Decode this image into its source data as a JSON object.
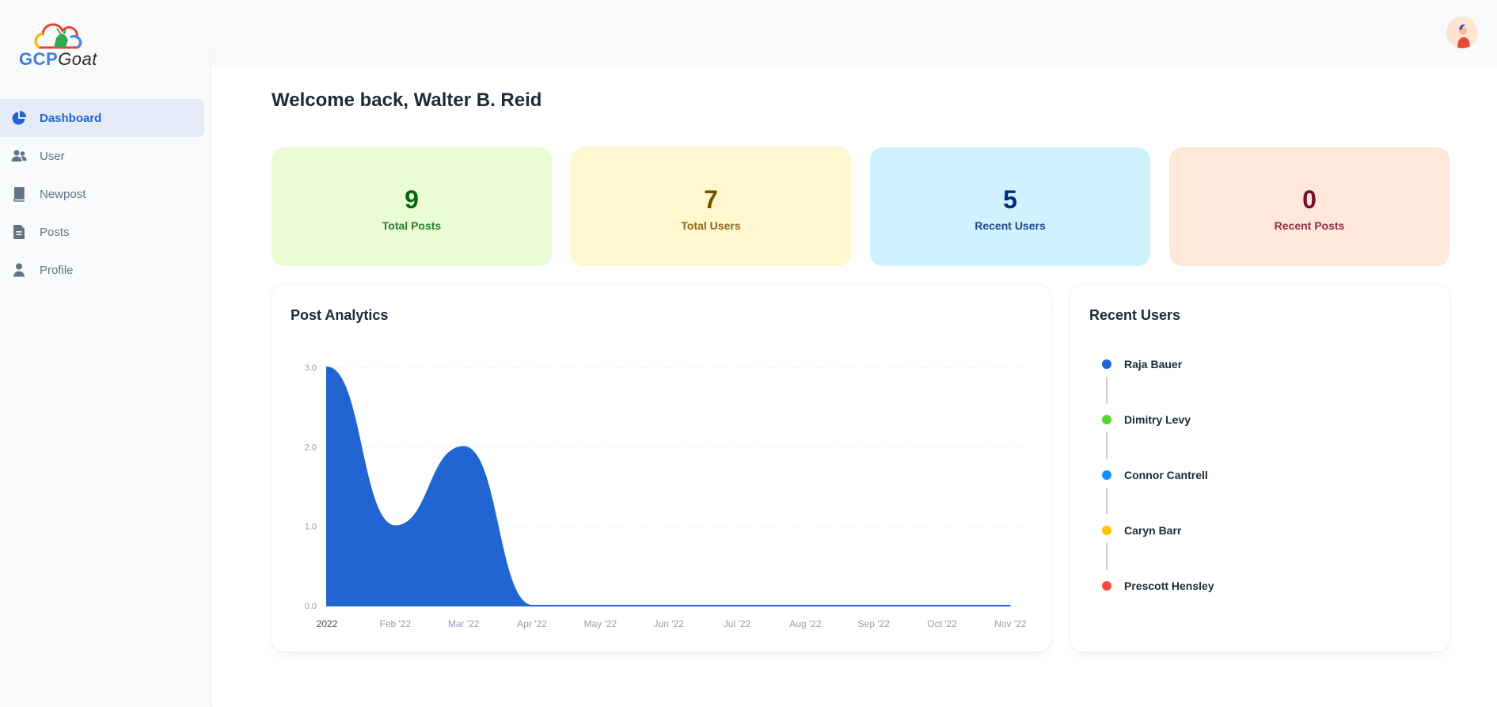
{
  "logo": {
    "part1": "GCP",
    "part2": "Goat"
  },
  "nav": [
    {
      "label": "Dashboard",
      "icon": "pie-chart-icon",
      "active": true
    },
    {
      "label": "User",
      "icon": "people-icon",
      "active": false
    },
    {
      "label": "Newpost",
      "icon": "book-icon",
      "active": false
    },
    {
      "label": "Posts",
      "icon": "file-text-icon",
      "active": false
    },
    {
      "label": "Profile",
      "icon": "person-icon",
      "active": false
    }
  ],
  "welcome": "Welcome back, Walter B. Reid",
  "stats": [
    {
      "value": "9",
      "label": "Total Posts",
      "bg": "#e9fcd4",
      "fg": "#08660d"
    },
    {
      "value": "7",
      "label": "Total Users",
      "bg": "#fff7cd",
      "fg": "#7a4f01"
    },
    {
      "value": "5",
      "label": "Recent Users",
      "bg": "#d0f2ff",
      "fg": "#04297a"
    },
    {
      "value": "0",
      "label": "Recent Posts",
      "bg": "#ffe7d9",
      "fg": "#7a0c2e"
    }
  ],
  "analytics": {
    "title": "Post Analytics"
  },
  "chart_data": {
    "type": "area",
    "x": [
      "2022",
      "Feb '22",
      "Mar '22",
      "Apr '22",
      "May '22",
      "Jun '22",
      "Jul '22",
      "Aug '22",
      "Sep '22",
      "Oct '22",
      "Nov '22"
    ],
    "series": [
      {
        "values": [
          3,
          1,
          2,
          0,
          0,
          0,
          0,
          0,
          0,
          0,
          0
        ]
      },
      {
        "values": [
          0,
          1,
          0,
          0,
          0,
          0,
          0,
          0,
          0,
          0,
          0
        ]
      }
    ],
    "yticks": [
      "0.0",
      "1.0",
      "2.0",
      "3.0"
    ],
    "ylim": [
      0,
      3
    ],
    "color": "#2065d1",
    "grid": true
  },
  "recent_users": {
    "title": "Recent Users",
    "items": [
      {
        "name": "Raja Bauer",
        "color": "#2065d1"
      },
      {
        "name": "Dimitry Levy",
        "color": "#54d62c"
      },
      {
        "name": "Connor Cantrell",
        "color": "#1890ff"
      },
      {
        "name": "Caryn Barr",
        "color": "#ffc107"
      },
      {
        "name": "Prescott Hensley",
        "color": "#ff4842"
      }
    ]
  }
}
